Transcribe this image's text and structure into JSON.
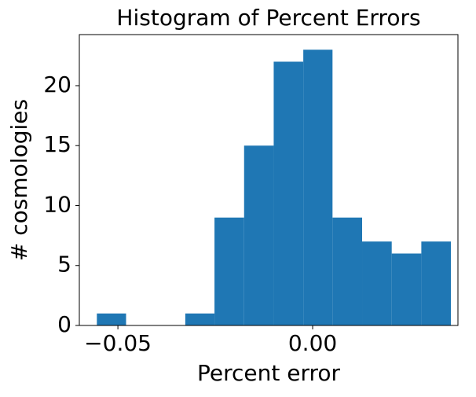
{
  "chart_data": {
    "type": "histogram",
    "title": "Histogram of Percent Errors",
    "x_label": "Percent error",
    "y_label": "# cosmologies",
    "bins": [
      -0.0554,
      -0.0479,
      -0.0403,
      -0.0327,
      -0.0252,
      -0.0176,
      -0.01,
      -0.0024,
      0.0051,
      0.0127,
      0.0203,
      0.0279,
      0.0355
    ],
    "values": [
      1,
      0,
      0,
      1,
      9,
      15,
      22,
      23,
      9,
      7,
      6,
      7
    ],
    "color": "#1f77b4",
    "xlim": [
      -0.0599,
      0.0373
    ],
    "ylim": [
      0,
      24.26
    ],
    "xticks": [
      {
        "value": -0.05,
        "label": "−0.05"
      },
      {
        "value": 0,
        "label": "0.00"
      }
    ],
    "yticks": [
      0,
      5,
      10,
      15,
      20
    ]
  }
}
